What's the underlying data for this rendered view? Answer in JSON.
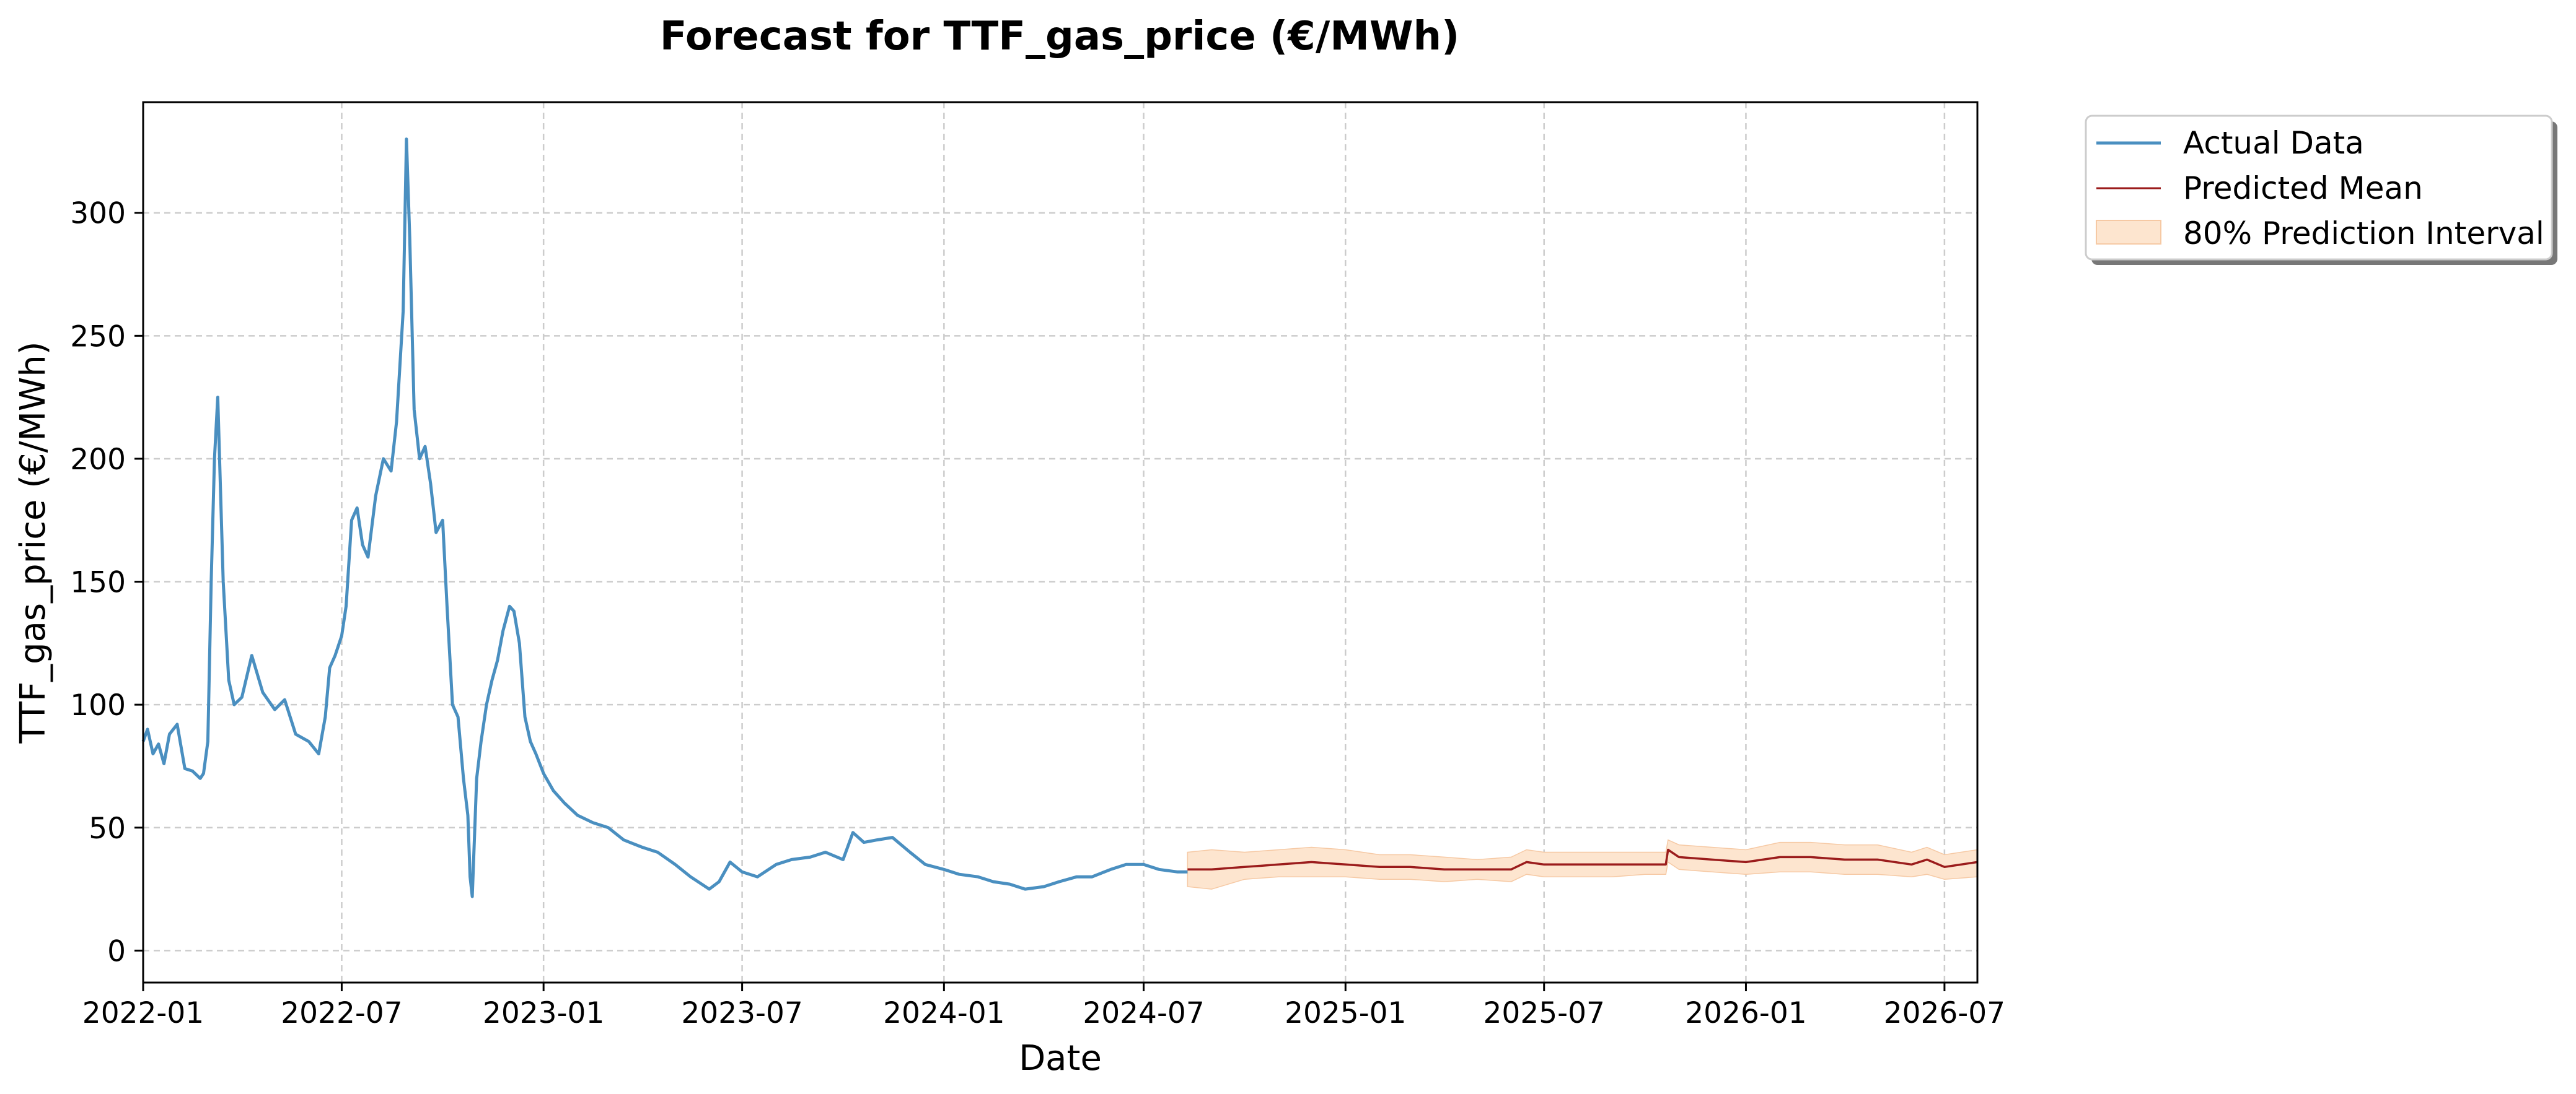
{
  "colors": {
    "actual": "#4a8fc0",
    "predicted": "#9b1c1c",
    "interval_fill": "#fde5cf",
    "interval_edge": "#f6c9a4",
    "grid": "#cccccc",
    "axes": "#000000"
  },
  "chart_data": {
    "type": "line",
    "title": "Forecast for TTF_gas_price (€/MWh)",
    "xlabel": "Date",
    "ylabel": "TTF_gas_price (€/MWh)",
    "xlim": [
      "2022-01-01",
      "2026-07-31"
    ],
    "ylim": [
      -13,
      345
    ],
    "grid": true,
    "legend_position": "outside-top-right",
    "x_ticks": [
      "2022-01",
      "2022-07",
      "2023-01",
      "2023-07",
      "2024-01",
      "2024-07",
      "2025-01",
      "2025-07",
      "2026-01",
      "2026-07"
    ],
    "y_ticks": [
      0,
      50,
      100,
      150,
      200,
      250,
      300
    ],
    "legend": [
      "Actual Data",
      "Predicted Mean",
      "80% Prediction Interval"
    ],
    "series": [
      {
        "name": "Actual Data",
        "x": [
          "2022-01-01",
          "2022-01-05",
          "2022-01-10",
          "2022-01-15",
          "2022-01-20",
          "2022-01-25",
          "2022-02-01",
          "2022-02-08",
          "2022-02-15",
          "2022-02-22",
          "2022-02-25",
          "2022-03-01",
          "2022-03-04",
          "2022-03-07",
          "2022-03-10",
          "2022-03-15",
          "2022-03-20",
          "2022-03-25",
          "2022-04-01",
          "2022-04-10",
          "2022-04-20",
          "2022-05-01",
          "2022-05-10",
          "2022-05-20",
          "2022-06-01",
          "2022-06-10",
          "2022-06-16",
          "2022-06-20",
          "2022-06-25",
          "2022-07-01",
          "2022-07-05",
          "2022-07-10",
          "2022-07-15",
          "2022-07-20",
          "2022-07-25",
          "2022-08-01",
          "2022-08-08",
          "2022-08-15",
          "2022-08-20",
          "2022-08-26",
          "2022-08-29",
          "2022-09-01",
          "2022-09-05",
          "2022-09-10",
          "2022-09-15",
          "2022-09-20",
          "2022-09-25",
          "2022-10-01",
          "2022-10-05",
          "2022-10-10",
          "2022-10-15",
          "2022-10-20",
          "2022-10-24",
          "2022-10-26",
          "2022-10-28",
          "2022-11-01",
          "2022-11-05",
          "2022-11-10",
          "2022-11-15",
          "2022-11-20",
          "2022-11-25",
          "2022-12-01",
          "2022-12-05",
          "2022-12-10",
          "2022-12-15",
          "2022-12-20",
          "2022-12-25",
          "2023-01-01",
          "2023-01-10",
          "2023-01-20",
          "2023-02-01",
          "2023-02-15",
          "2023-03-01",
          "2023-03-15",
          "2023-04-01",
          "2023-04-15",
          "2023-05-01",
          "2023-05-15",
          "2023-06-01",
          "2023-06-10",
          "2023-06-20",
          "2023-07-01",
          "2023-07-15",
          "2023-08-01",
          "2023-08-15",
          "2023-09-01",
          "2023-09-15",
          "2023-10-01",
          "2023-10-10",
          "2023-10-20",
          "2023-11-01",
          "2023-11-15",
          "2023-12-01",
          "2023-12-15",
          "2024-01-01",
          "2024-01-15",
          "2024-02-01",
          "2024-02-15",
          "2024-03-01",
          "2024-03-15",
          "2024-04-01",
          "2024-04-15",
          "2024-05-01",
          "2024-05-15",
          "2024-06-01",
          "2024-06-15",
          "2024-07-01",
          "2024-07-15",
          "2024-08-01",
          "2024-08-10"
        ],
        "y": [
          85,
          90,
          80,
          84,
          76,
          88,
          92,
          74,
          73,
          70,
          72,
          85,
          150,
          200,
          225,
          150,
          110,
          100,
          103,
          120,
          105,
          98,
          102,
          88,
          85,
          80,
          95,
          115,
          120,
          128,
          140,
          175,
          180,
          165,
          160,
          185,
          200,
          195,
          215,
          260,
          330,
          290,
          220,
          200,
          205,
          190,
          170,
          175,
          140,
          100,
          95,
          70,
          55,
          30,
          22,
          70,
          85,
          100,
          110,
          118,
          130,
          140,
          138,
          125,
          95,
          85,
          80,
          72,
          65,
          60,
          55,
          52,
          50,
          45,
          42,
          40,
          35,
          30,
          25,
          28,
          36,
          32,
          30,
          35,
          37,
          38,
          40,
          37,
          48,
          44,
          45,
          46,
          40,
          35,
          33,
          31,
          30,
          28,
          27,
          25,
          26,
          28,
          30,
          30,
          33,
          35,
          35,
          33,
          32,
          32
        ]
      },
      {
        "name": "Predicted Mean",
        "x": [
          "2024-08-10",
          "2024-09-01",
          "2024-10-01",
          "2024-11-01",
          "2024-12-01",
          "2025-01-01",
          "2025-02-01",
          "2025-03-01",
          "2025-04-01",
          "2025-05-01",
          "2025-06-01",
          "2025-06-15",
          "2025-07-01",
          "2025-08-01",
          "2025-09-01",
          "2025-10-01",
          "2025-10-20",
          "2025-10-22",
          "2025-11-01",
          "2025-12-01",
          "2026-01-01",
          "2026-02-01",
          "2026-03-01",
          "2026-04-01",
          "2026-05-01",
          "2026-06-01",
          "2026-06-15",
          "2026-07-01",
          "2026-07-31"
        ],
        "y": [
          33,
          33,
          34,
          35,
          36,
          35,
          34,
          34,
          33,
          33,
          33,
          36,
          35,
          35,
          35,
          35,
          35,
          41,
          38,
          37,
          36,
          38,
          38,
          37,
          37,
          35,
          37,
          34,
          36
        ]
      },
      {
        "name": "80% Prediction Interval",
        "x": [
          "2024-08-10",
          "2024-09-01",
          "2024-10-01",
          "2024-11-01",
          "2024-12-01",
          "2025-01-01",
          "2025-02-01",
          "2025-03-01",
          "2025-04-01",
          "2025-05-01",
          "2025-06-01",
          "2025-06-15",
          "2025-07-01",
          "2025-08-01",
          "2025-09-01",
          "2025-10-01",
          "2025-10-20",
          "2025-10-22",
          "2025-11-01",
          "2025-12-01",
          "2026-01-01",
          "2026-02-01",
          "2026-03-01",
          "2026-04-01",
          "2026-05-01",
          "2026-06-01",
          "2026-06-15",
          "2026-07-01",
          "2026-07-31"
        ],
        "lower": [
          26,
          25,
          29,
          30,
          30,
          30,
          29,
          29,
          28,
          29,
          28,
          31,
          30,
          30,
          30,
          31,
          31,
          36,
          33,
          32,
          31,
          32,
          32,
          31,
          31,
          30,
          31,
          29,
          30
        ],
        "upper": [
          40,
          41,
          40,
          41,
          42,
          41,
          39,
          39,
          38,
          37,
          38,
          41,
          40,
          40,
          40,
          40,
          40,
          45,
          43,
          42,
          41,
          44,
          44,
          43,
          43,
          40,
          42,
          39,
          41
        ]
      }
    ]
  }
}
